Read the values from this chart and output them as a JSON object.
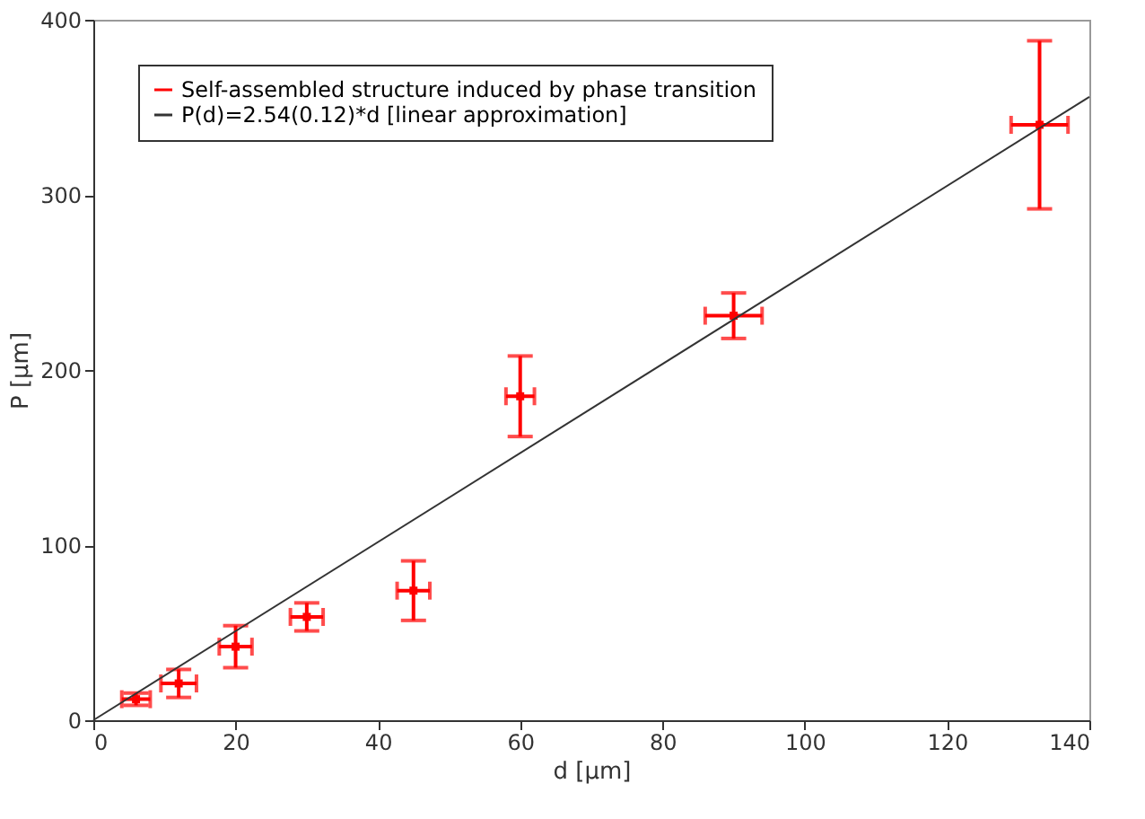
{
  "chart_data": {
    "type": "scatter",
    "xlabel": "d [µm]",
    "ylabel": "P [µm]",
    "xlim": [
      0,
      140
    ],
    "xticks": [
      0,
      20,
      40,
      60,
      80,
      100,
      120,
      140
    ],
    "ylim": [
      0,
      400
    ],
    "yticks": [
      0,
      100,
      200,
      300,
      400
    ],
    "grid": false,
    "legend": "top left",
    "series": [
      {
        "name": "Self-assembled structure induced by phase transition",
        "color": "#ff0000",
        "marker": "square",
        "x": [
          6,
          12,
          20,
          30,
          45,
          60,
          90,
          133
        ],
        "values": [
          12,
          21,
          42,
          59,
          74,
          185,
          231,
          340
        ],
        "errors": [
          3.5,
          8,
          12,
          8,
          17,
          23,
          13,
          48
        ],
        "xerrors": [
          2,
          2.5,
          2.3,
          2.3,
          2.3,
          2,
          4,
          4
        ]
      },
      {
        "name": "P(d)=2.54(0.12)*d [linear approximation]",
        "color": "#333333",
        "type": "line",
        "marker": "none",
        "x": [
          0,
          140
        ],
        "values": [
          0,
          356
        ]
      }
    ]
  }
}
